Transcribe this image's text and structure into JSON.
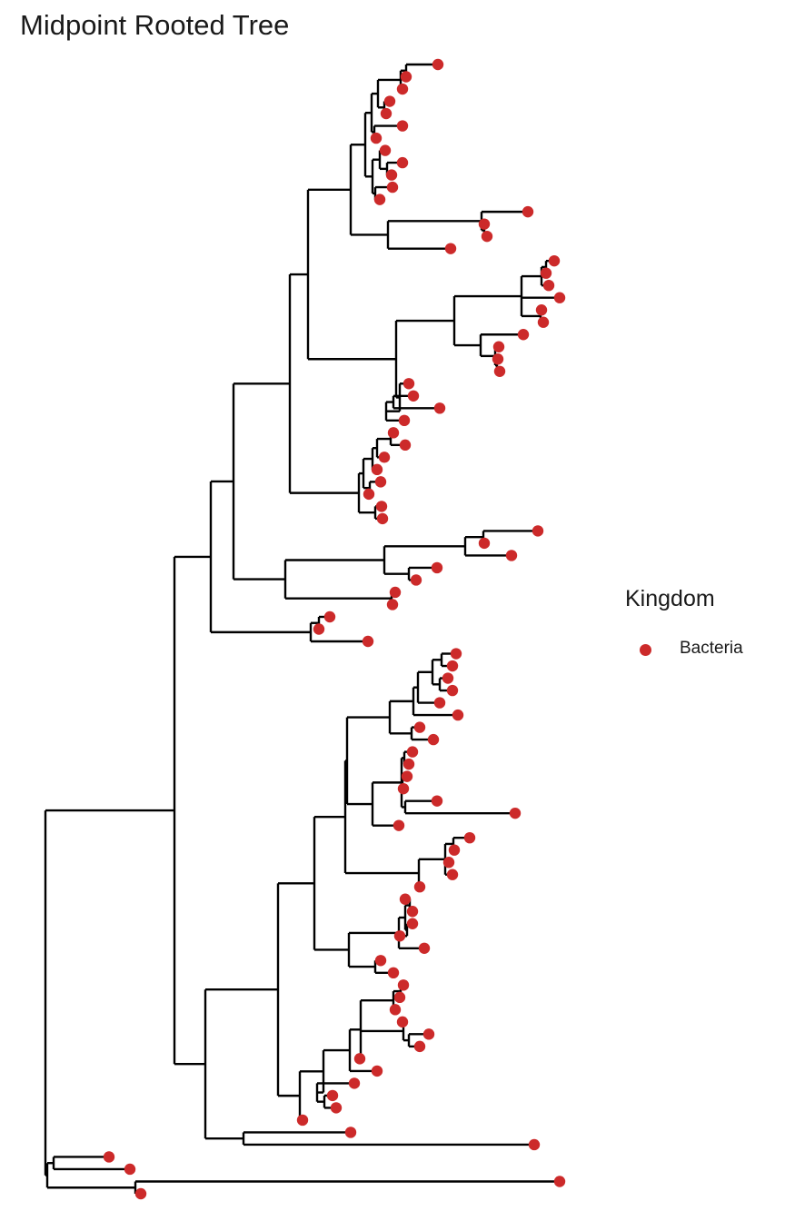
{
  "title": "Midpoint Rooted Tree",
  "legend": {
    "title": "Kingdom",
    "items": [
      {
        "label": "Bacteria",
        "color": "#cc2a2a"
      }
    ]
  },
  "tree": {
    "edge_color": "#000000",
    "tip_color": "#cc2a2a",
    "tip_count": 90,
    "note": "phylogram with unlabeled tips"
  }
}
